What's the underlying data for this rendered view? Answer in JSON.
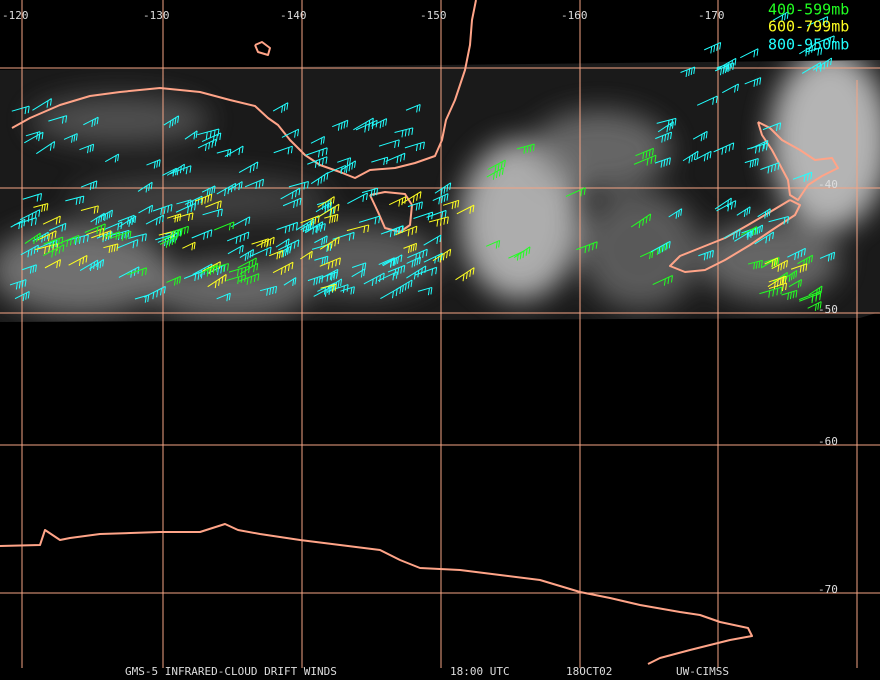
{
  "map": {
    "longitude_labels": [
      "-120",
      "-130",
      "-140",
      "-150",
      "-160",
      "-170"
    ],
    "latitude_labels": [
      "-40",
      "-50",
      "-60",
      "-70"
    ],
    "legend": [
      {
        "label": "400-599mb",
        "color": "#22ff22"
      },
      {
        "label": "600-799mb",
        "color": "#ffff22"
      },
      {
        "label": "800-950mb",
        "color": "#22ffff"
      }
    ],
    "footer": [
      "GMS-5 INFRARED-CLOUD DRIFT WINDS",
      "18:00 UTC",
      "18OCT02",
      "UW-CIMSS"
    ]
  }
}
